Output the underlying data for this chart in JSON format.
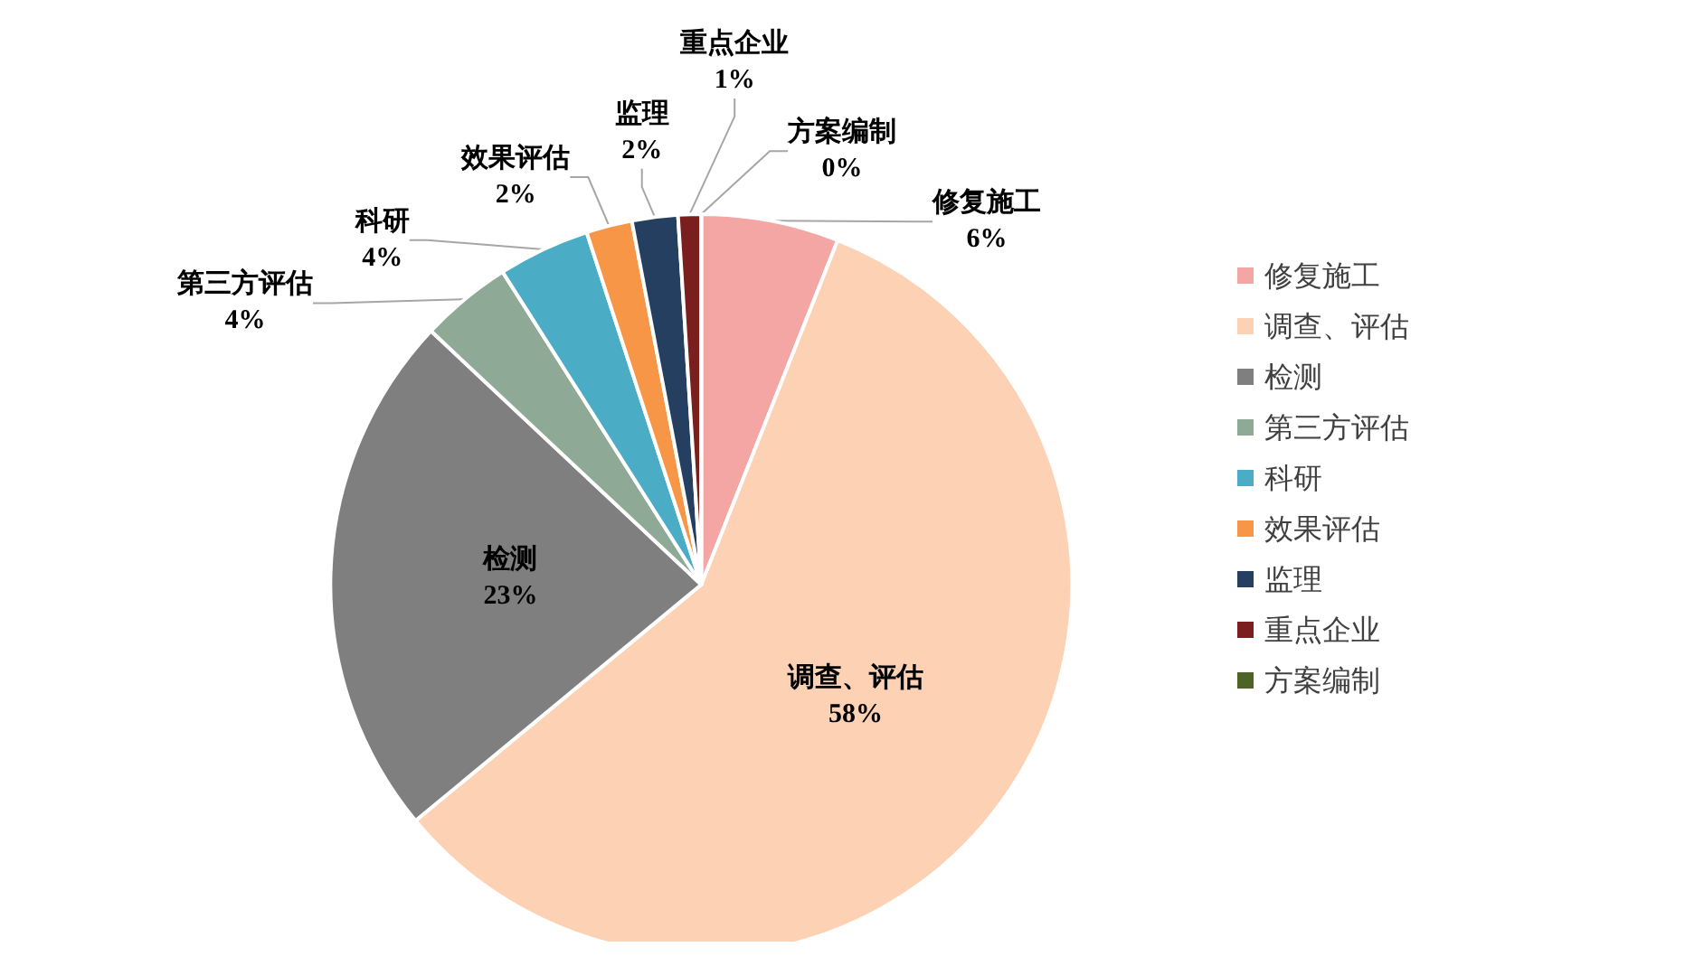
{
  "chart_data": {
    "type": "pie",
    "categories": [
      "修复施工",
      "调查、评估",
      "检测",
      "第三方评估",
      "科研",
      "效果评估",
      "监理",
      "重点企业",
      "方案编制"
    ],
    "values": [
      6,
      58,
      23,
      4,
      4,
      2,
      2,
      1,
      0
    ],
    "value_labels": [
      "6%",
      "58%",
      "23%",
      "4%",
      "4%",
      "2%",
      "2%",
      "1%",
      "0%"
    ],
    "colors": [
      "#f4a6a4",
      "#fcd1b4",
      "#7f7f7f",
      "#8eaa97",
      "#4bacc6",
      "#f79646",
      "#243f60",
      "#7b1e1e",
      "#4f6228"
    ],
    "legend": "right"
  }
}
